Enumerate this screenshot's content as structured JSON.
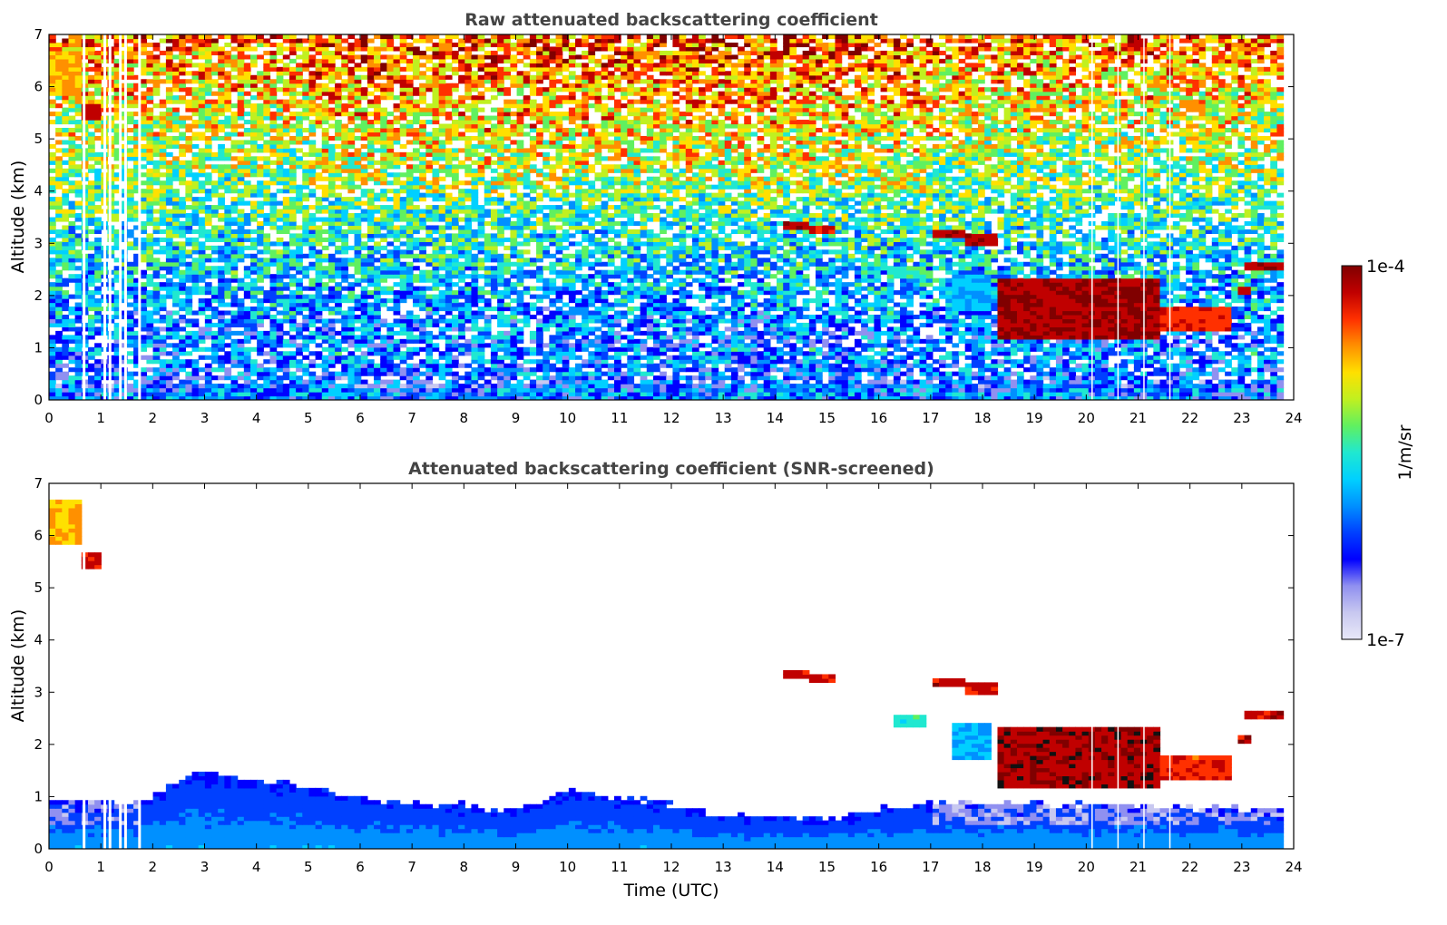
{
  "chart_data": [
    {
      "type": "heatmap",
      "title": "Raw attenuated backscattering coefficient",
      "xlabel": "",
      "ylabel": "Altitude (km)",
      "xlim": [
        0,
        24
      ],
      "ylim": [
        0,
        7
      ],
      "xticks": [
        0,
        1,
        2,
        3,
        4,
        5,
        6,
        7,
        8,
        9,
        10,
        11,
        12,
        13,
        14,
        15,
        16,
        17,
        18,
        19,
        20,
        21,
        22,
        23,
        24
      ],
      "yticks": [
        0,
        1,
        2,
        3,
        4,
        5,
        6,
        7
      ],
      "features": [
        {
          "kind": "cloud",
          "t_start": 0.0,
          "t_end": 0.6,
          "alt_bottom": 5.8,
          "alt_top": 6.7,
          "level": 0.8
        },
        {
          "kind": "cloud",
          "t_start": 0.6,
          "t_end": 1.0,
          "alt_bottom": 5.4,
          "alt_top": 5.7,
          "level": 0.97
        },
        {
          "kind": "cloud",
          "t_start": 14.1,
          "t_end": 14.6,
          "alt_bottom": 3.3,
          "alt_top": 3.45,
          "level": 0.98
        },
        {
          "kind": "cloud",
          "t_start": 14.6,
          "t_end": 15.2,
          "alt_bottom": 3.2,
          "alt_top": 3.35,
          "level": 0.95
        },
        {
          "kind": "cloud",
          "t_start": 17.0,
          "t_end": 17.6,
          "alt_bottom": 3.15,
          "alt_top": 3.3,
          "level": 0.98
        },
        {
          "kind": "cloud",
          "t_start": 17.6,
          "t_end": 18.3,
          "alt_bottom": 2.95,
          "alt_top": 3.15,
          "level": 0.97
        },
        {
          "kind": "cloud",
          "t_start": 16.3,
          "t_end": 16.9,
          "alt_bottom": 2.3,
          "alt_top": 2.6,
          "level": 0.55
        },
        {
          "kind": "cloud",
          "t_start": 17.4,
          "t_end": 18.2,
          "alt_bottom": 1.7,
          "alt_top": 2.4,
          "level": 0.45
        },
        {
          "kind": "cloud",
          "t_start": 18.3,
          "t_end": 21.4,
          "alt_bottom": 1.2,
          "alt_top": 2.3,
          "level": 1.0
        },
        {
          "kind": "cloud",
          "t_start": 21.4,
          "t_end": 22.8,
          "alt_bottom": 1.3,
          "alt_top": 1.8,
          "level": 0.92
        },
        {
          "kind": "cloud",
          "t_start": 23.1,
          "t_end": 23.8,
          "alt_bottom": 2.45,
          "alt_top": 2.65,
          "level": 0.98
        },
        {
          "kind": "cloud",
          "t_start": 22.9,
          "t_end": 23.2,
          "alt_bottom": 2.0,
          "alt_top": 2.15,
          "level": 0.97
        }
      ]
    },
    {
      "type": "heatmap",
      "title": "Attenuated backscattering coefficient (SNR-screened)",
      "xlabel": "Time (UTC)",
      "ylabel": "Altitude (km)",
      "xlim": [
        0,
        24
      ],
      "ylim": [
        0,
        7
      ],
      "xticks": [
        0,
        1,
        2,
        3,
        4,
        5,
        6,
        7,
        8,
        9,
        10,
        11,
        12,
        13,
        14,
        15,
        16,
        17,
        18,
        19,
        20,
        21,
        22,
        23,
        24
      ],
      "yticks": [
        0,
        1,
        2,
        3,
        4,
        5,
        6,
        7
      ],
      "boundary_layer_top_km": [
        [
          0,
          0.9
        ],
        [
          1.8,
          0.9
        ],
        [
          2.3,
          1.2
        ],
        [
          2.8,
          1.5
        ],
        [
          4,
          1.3
        ],
        [
          5,
          1.2
        ],
        [
          6,
          1.0
        ],
        [
          7,
          0.85
        ],
        [
          8,
          0.85
        ],
        [
          8.8,
          0.7
        ],
        [
          9.2,
          0.8
        ],
        [
          10,
          1.1
        ],
        [
          11,
          1.0
        ],
        [
          12,
          0.85
        ],
        [
          13,
          0.6
        ],
        [
          14,
          0.65
        ],
        [
          15,
          0.55
        ],
        [
          16,
          0.75
        ],
        [
          17,
          0.9
        ],
        [
          18,
          0.85
        ],
        [
          20,
          0.85
        ],
        [
          22,
          0.8
        ],
        [
          23.8,
          0.75
        ]
      ]
    }
  ],
  "colorbar": {
    "label": "1/m/sr",
    "max_label": "1e-4",
    "min_label": "1e-7",
    "colors": [
      "#e8e8f8",
      "#c8c8f0",
      "#9090f0",
      "#0000ff",
      "#0040ff",
      "#0090ff",
      "#00d0ff",
      "#20e8d0",
      "#60f060",
      "#c0f020",
      "#ffe000",
      "#ff9000",
      "#ff3000",
      "#c00000",
      "#800000"
    ]
  }
}
